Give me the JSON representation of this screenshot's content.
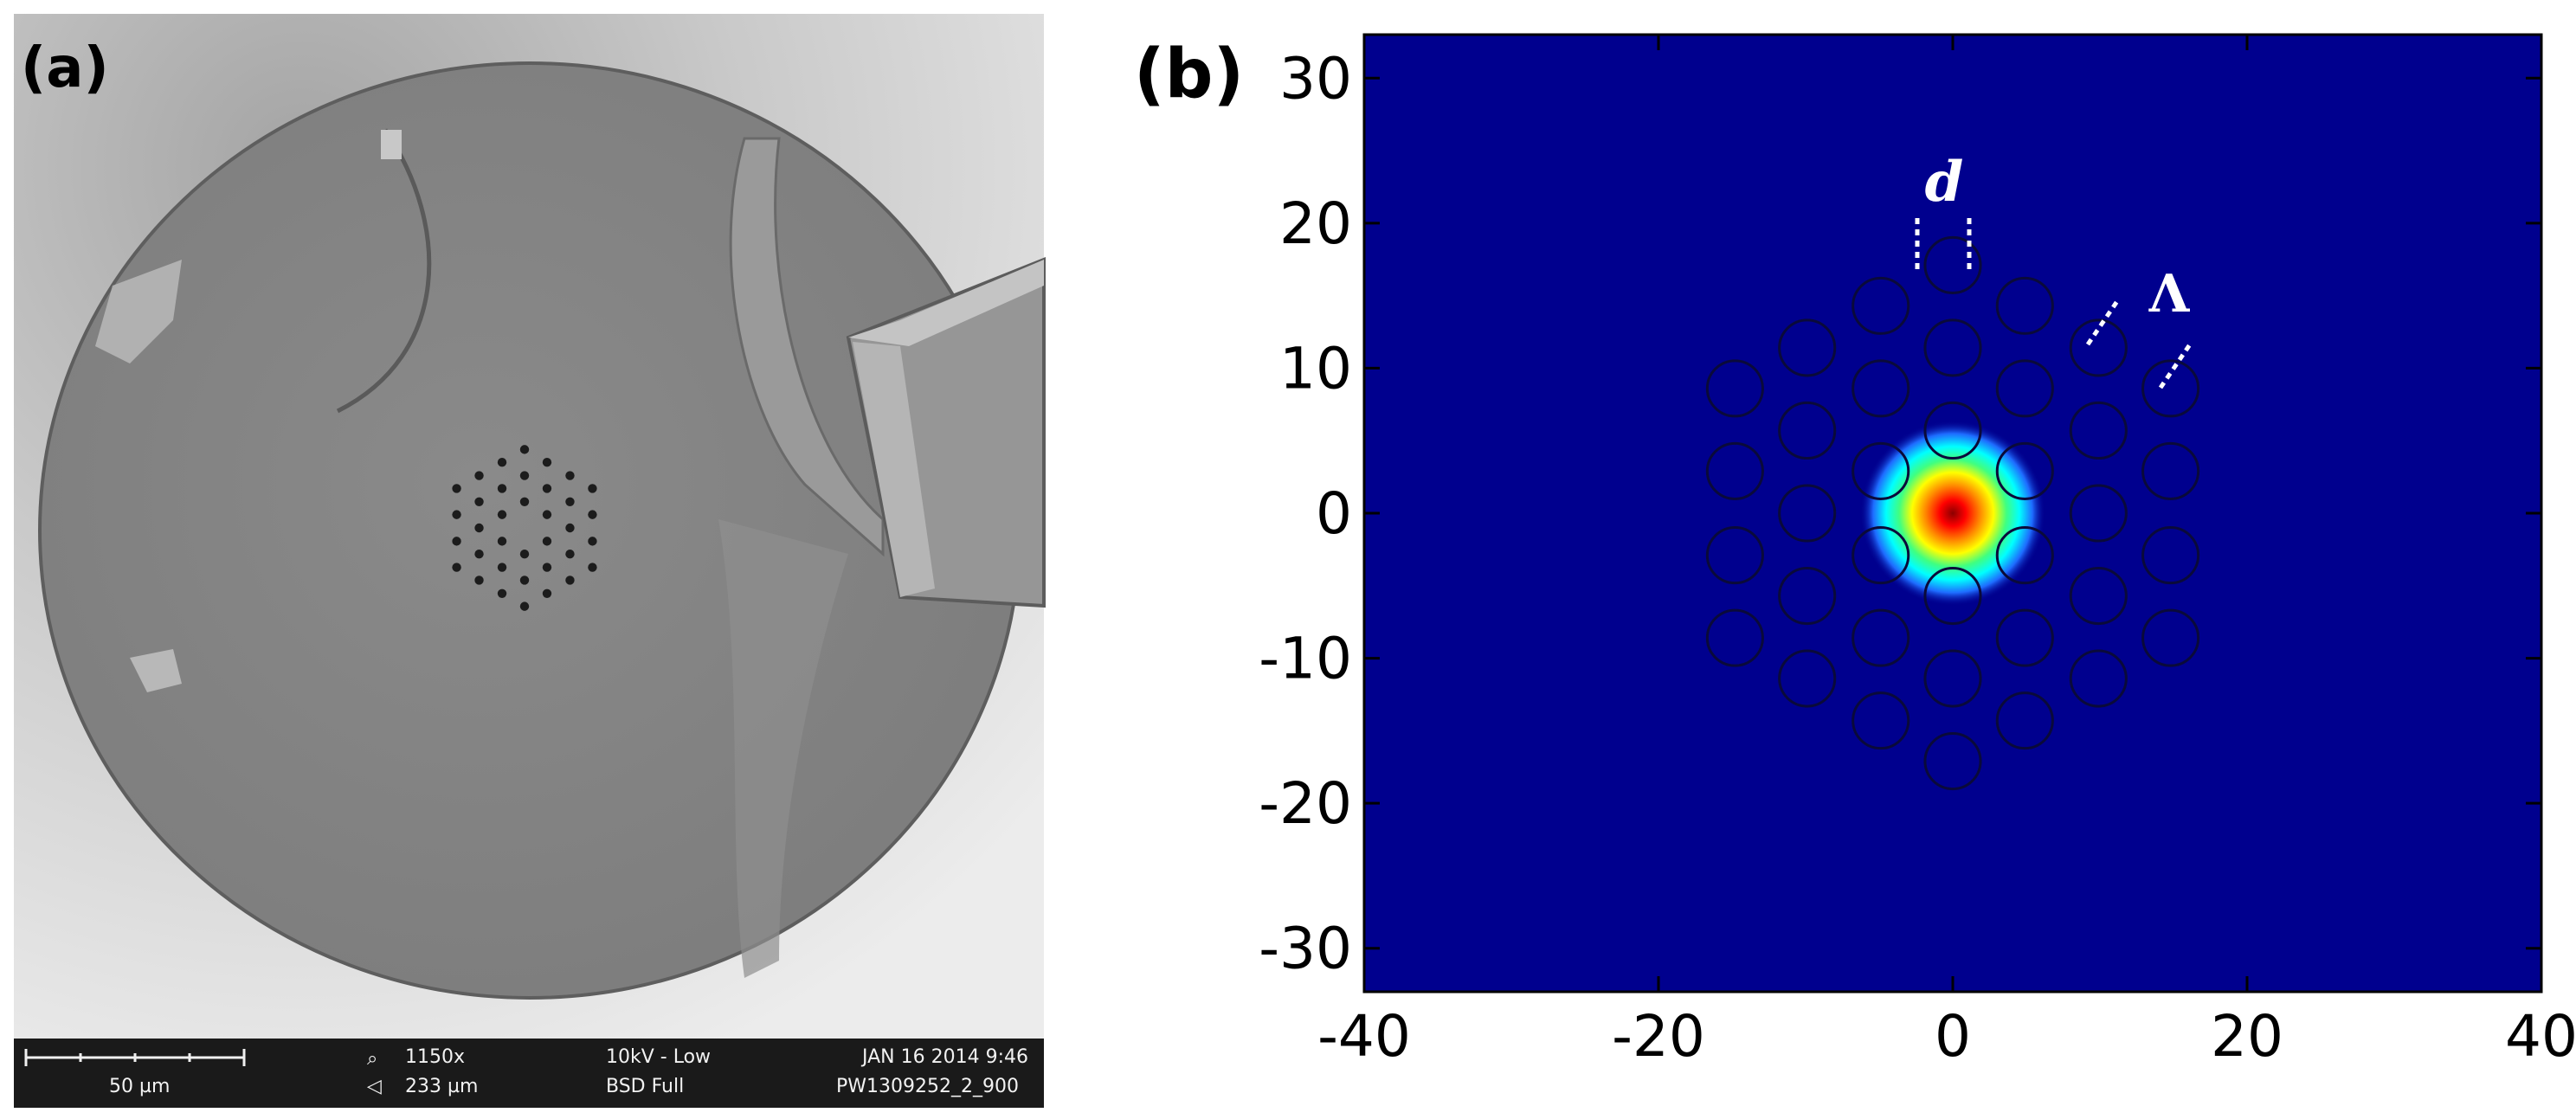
{
  "panel_a": {
    "label": "(a)",
    "scale_bar_label": "50 µm",
    "magnification": "1150x",
    "field_width": "233 µm",
    "voltage": "10kV - Low",
    "detector": "BSD Full",
    "date": "JAN 16 2014 9:46",
    "sample_id": "PW1309252_2_900"
  },
  "panel_b": {
    "label": "(b)",
    "annotation_d": "d",
    "annotation_lambda": "Λ",
    "colors": {
      "background": "#00008e",
      "hole_outline": "#0a0a3a",
      "annotation": "#ffffff"
    }
  },
  "chart_data": {
    "type": "heatmap",
    "xlim": [
      -40,
      40
    ],
    "ylim": [
      -33,
      33
    ],
    "x_ticks": [
      -40,
      -20,
      0,
      20,
      40
    ],
    "y_ticks": [
      30,
      20,
      10,
      0,
      -10,
      -20,
      -30
    ],
    "colormap": "jet",
    "mode_center": [
      0,
      0
    ],
    "mode_radius": 3,
    "hole_diameter": 2.6,
    "holes": [
      [
        0,
        17.1
      ],
      [
        -4.9,
        14.3
      ],
      [
        4.9,
        14.3
      ],
      [
        -9.9,
        11.4
      ],
      [
        0,
        11.4
      ],
      [
        9.9,
        11.4
      ],
      [
        -14.8,
        8.6
      ],
      [
        -4.9,
        8.6
      ],
      [
        4.9,
        8.6
      ],
      [
        14.8,
        8.6
      ],
      [
        -9.9,
        5.7
      ],
      [
        0,
        5.7
      ],
      [
        9.9,
        5.7
      ],
      [
        -14.8,
        2.9
      ],
      [
        -4.9,
        2.9
      ],
      [
        4.9,
        2.9
      ],
      [
        14.8,
        2.9
      ],
      [
        -9.9,
        0
      ],
      [
        9.9,
        0
      ],
      [
        -14.8,
        -2.9
      ],
      [
        -4.9,
        -2.9
      ],
      [
        4.9,
        -2.9
      ],
      [
        14.8,
        -2.9
      ],
      [
        -9.9,
        -5.7
      ],
      [
        0,
        -5.7
      ],
      [
        9.9,
        -5.7
      ],
      [
        -14.8,
        -8.6
      ],
      [
        -4.9,
        -8.6
      ],
      [
        4.9,
        -8.6
      ],
      [
        14.8,
        -8.6
      ],
      [
        -9.9,
        -11.4
      ],
      [
        0,
        -11.4
      ],
      [
        9.9,
        -11.4
      ],
      [
        -4.9,
        -14.3
      ],
      [
        4.9,
        -14.3
      ],
      [
        0,
        -17.1
      ]
    ]
  }
}
